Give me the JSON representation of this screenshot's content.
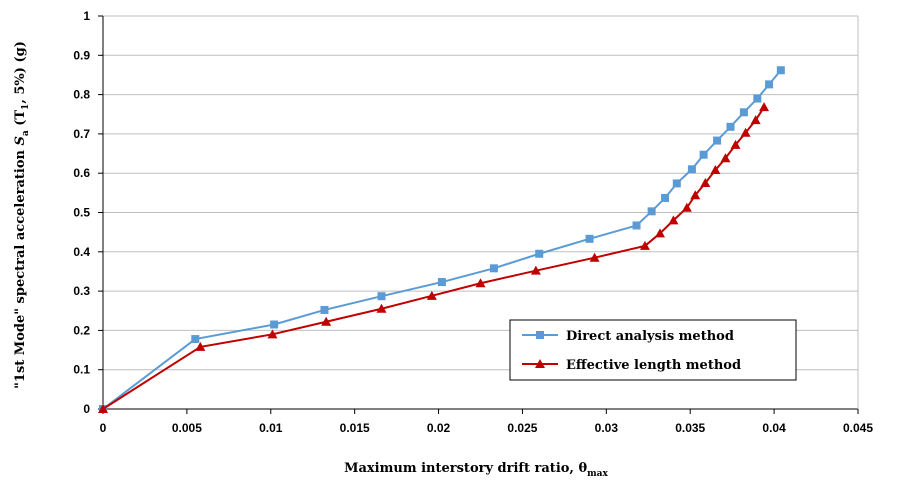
{
  "chart_data": {
    "type": "line",
    "title": "",
    "xlabel": "Maximum interstory drift ratio, θ",
    "xlabel_sub": "max",
    "ylabel_prefix": "\"1st Mode\" spectral acceleration ",
    "ylabel_S": "S",
    "ylabel_S_sub": "a",
    "ylabel_paren_open": " (T",
    "ylabel_T_sub": "1",
    "ylabel_suffix": ", 5%) (g)",
    "xlim": [
      0,
      0.045
    ],
    "ylim": [
      0,
      1
    ],
    "xticks": [
      0,
      0.005,
      0.01,
      0.015,
      0.02,
      0.025,
      0.03,
      0.035,
      0.04,
      0.045
    ],
    "xtick_labels": [
      "0",
      "0.005",
      "0.01",
      "0.015",
      "0.02",
      "0.025",
      "0.03",
      "0.035",
      "0.04",
      "0.045"
    ],
    "yticks": [
      0,
      0.1,
      0.2,
      0.3,
      0.4,
      0.5,
      0.6,
      0.7,
      0.8,
      0.9,
      1
    ],
    "ytick_labels": [
      "0",
      "0.1",
      "0.2",
      "0.3",
      "0.4",
      "0.5",
      "0.6",
      "0.7",
      "0.8",
      "0.9",
      "1"
    ],
    "grid": "horizontal",
    "legend_position": "bottom-right",
    "series": [
      {
        "name": "Direct analysis method",
        "color": "#5b9bd5",
        "marker": "square",
        "points": [
          [
            0,
            0
          ],
          [
            0.0055,
            0.178
          ],
          [
            0.0102,
            0.215
          ],
          [
            0.0132,
            0.252
          ],
          [
            0.0166,
            0.287
          ],
          [
            0.0202,
            0.323
          ],
          [
            0.0233,
            0.358
          ],
          [
            0.026,
            0.395
          ],
          [
            0.029,
            0.433
          ],
          [
            0.0318,
            0.467
          ],
          [
            0.0327,
            0.503
          ],
          [
            0.0335,
            0.537
          ],
          [
            0.0342,
            0.574
          ],
          [
            0.0351,
            0.61
          ],
          [
            0.0358,
            0.647
          ],
          [
            0.0366,
            0.683
          ],
          [
            0.0374,
            0.718
          ],
          [
            0.0382,
            0.755
          ],
          [
            0.039,
            0.79
          ],
          [
            0.0397,
            0.826
          ],
          [
            0.0404,
            0.862
          ]
        ]
      },
      {
        "name": "Effective length method",
        "color": "#c00000",
        "marker": "triangle",
        "points": [
          [
            0,
            0
          ],
          [
            0.0058,
            0.158
          ],
          [
            0.0101,
            0.19
          ],
          [
            0.0133,
            0.222
          ],
          [
            0.0166,
            0.255
          ],
          [
            0.0196,
            0.288
          ],
          [
            0.0225,
            0.32
          ],
          [
            0.0258,
            0.352
          ],
          [
            0.0293,
            0.385
          ],
          [
            0.0323,
            0.415
          ],
          [
            0.0332,
            0.447
          ],
          [
            0.034,
            0.48
          ],
          [
            0.0348,
            0.512
          ],
          [
            0.0353,
            0.544
          ],
          [
            0.0359,
            0.575
          ],
          [
            0.0365,
            0.608
          ],
          [
            0.0371,
            0.638
          ],
          [
            0.0377,
            0.672
          ],
          [
            0.0383,
            0.703
          ],
          [
            0.0389,
            0.735
          ],
          [
            0.0394,
            0.768
          ]
        ]
      }
    ]
  }
}
